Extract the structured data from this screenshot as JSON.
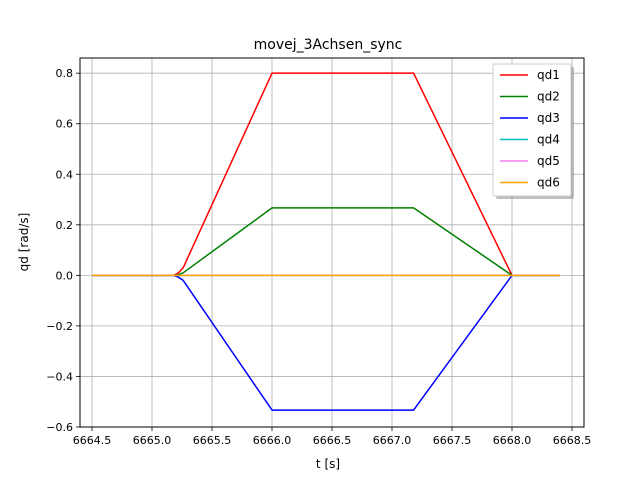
{
  "chart_data": {
    "type": "line",
    "title": "movej_3Achsen_sync",
    "xlabel": "t [s]",
    "ylabel": "qd [rad/s]",
    "xlim": [
      6664.4,
      6668.6
    ],
    "ylim": [
      -0.6,
      0.86
    ],
    "xticks": [
      6664.5,
      6665.0,
      6665.5,
      6666.0,
      6666.5,
      6667.0,
      6667.5,
      6668.0,
      6668.5
    ],
    "xtick_labels": [
      "6664.5",
      "6665.0",
      "6665.5",
      "6666.0",
      "6666.5",
      "6667.0",
      "6667.5",
      "6668.0",
      "6668.5"
    ],
    "yticks": [
      -0.6,
      -0.4,
      -0.2,
      0.0,
      0.2,
      0.4,
      0.6,
      0.8
    ],
    "ytick_labels": [
      "−0.6",
      "−0.4",
      "−0.2",
      "0.0",
      "0.2",
      "0.4",
      "0.6",
      "0.8"
    ],
    "grid": true,
    "legend": "top-right",
    "series": [
      {
        "name": "qd1",
        "color": "#ff0000",
        "x": [
          6664.5,
          6665.18,
          6665.22,
          6665.26,
          6666.0,
          6667.18,
          6668.0,
          6668.4
        ],
        "y": [
          0.0,
          0.0,
          0.01,
          0.03,
          0.8,
          0.8,
          0.0,
          0.0
        ]
      },
      {
        "name": "qd2",
        "color": "#008000",
        "x": [
          6664.5,
          6665.18,
          6665.22,
          6665.26,
          6666.0,
          6667.18,
          6668.0,
          6668.4
        ],
        "y": [
          0.0,
          0.0,
          0.003,
          0.01,
          0.267,
          0.267,
          0.0,
          0.0
        ]
      },
      {
        "name": "qd3",
        "color": "#0000ff",
        "x": [
          6664.5,
          6665.18,
          6665.22,
          6665.26,
          6666.0,
          6667.18,
          6668.0,
          6668.4
        ],
        "y": [
          0.0,
          0.0,
          -0.007,
          -0.02,
          -0.533,
          -0.533,
          0.0,
          0.0
        ]
      },
      {
        "name": "qd4",
        "color": "#00bfbf",
        "x": [
          6664.5,
          6668.4
        ],
        "y": [
          0.0,
          0.0
        ]
      },
      {
        "name": "qd5",
        "color": "#ee82ee",
        "x": [
          6664.5,
          6668.4
        ],
        "y": [
          0.0,
          0.0
        ]
      },
      {
        "name": "qd6",
        "color": "#ffa500",
        "x": [
          6664.5,
          6668.4
        ],
        "y": [
          0.0,
          0.0
        ]
      }
    ]
  }
}
